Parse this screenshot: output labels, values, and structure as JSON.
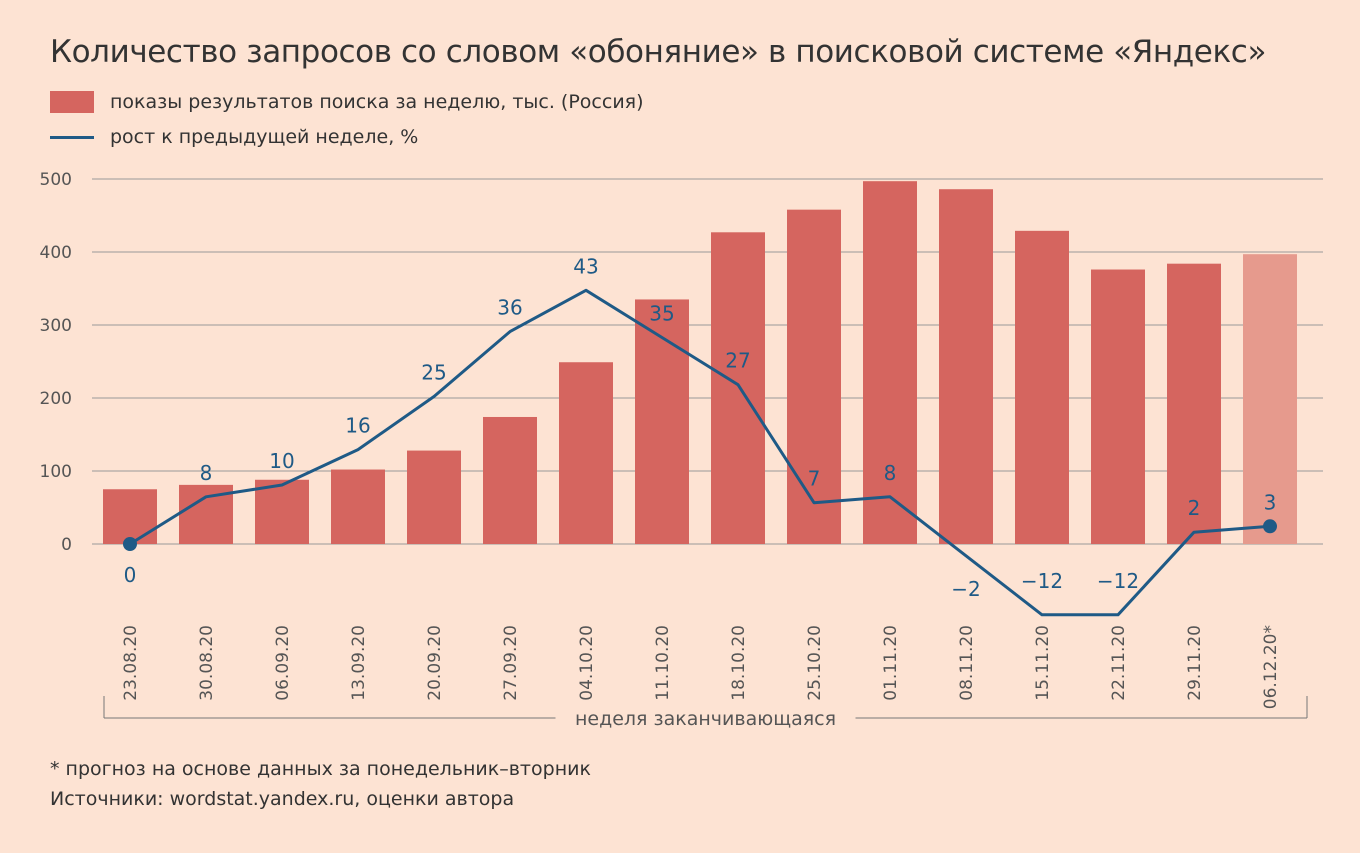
{
  "chart_data": {
    "type": "bar+line",
    "title": "Количество запросов со словом «обоняние» в поисковой системе «Яндекс»",
    "categories": [
      "23.08.20",
      "30.08.20",
      "06.09.20",
      "13.09.20",
      "20.09.20",
      "27.09.20",
      "04.10.20",
      "11.10.20",
      "18.10.20",
      "25.10.20",
      "01.11.20",
      "08.11.20",
      "15.11.20",
      "22.11.20",
      "29.11.20",
      "06.12.20*"
    ],
    "series": [
      {
        "name": "показы результатов поиска за неделю, тыс. (Россия)",
        "type": "bar",
        "color": "#d5655f",
        "forecast_color": "#e69a8d",
        "values": [
          75,
          81,
          88,
          102,
          128,
          174,
          249,
          335,
          427,
          458,
          497,
          486,
          429,
          376,
          384,
          397
        ]
      },
      {
        "name": "рост к предыдущей неделе, %",
        "type": "line",
        "color": "#1f5a86",
        "values": [
          0,
          8,
          10,
          16,
          25,
          36,
          43,
          35,
          27,
          7,
          8,
          -2,
          -12,
          -12,
          2,
          3
        ],
        "labels": [
          "0",
          "8",
          "10",
          "16",
          "25",
          "36",
          "43",
          "35",
          "27",
          "7",
          "8",
          "-2",
          "-12",
          "-12",
          "2",
          "3"
        ]
      }
    ],
    "yticks": [
      "0",
      "100",
      "200",
      "300",
      "400",
      "500"
    ],
    "ylim": [
      0,
      500
    ],
    "xlabel": "неделя заканчивающаяся",
    "grid": true,
    "legend_position": "top-left"
  },
  "legend": {
    "bars": "показы результатов поиска за неделю, тыс. (Россия)",
    "line": "рост к предыдущей неделе, %"
  },
  "footnotes": {
    "forecast": "* прогноз на основе данных за понедельник–вторник",
    "sources": "Источники: wordstat.yandex.ru, оценки автора"
  }
}
